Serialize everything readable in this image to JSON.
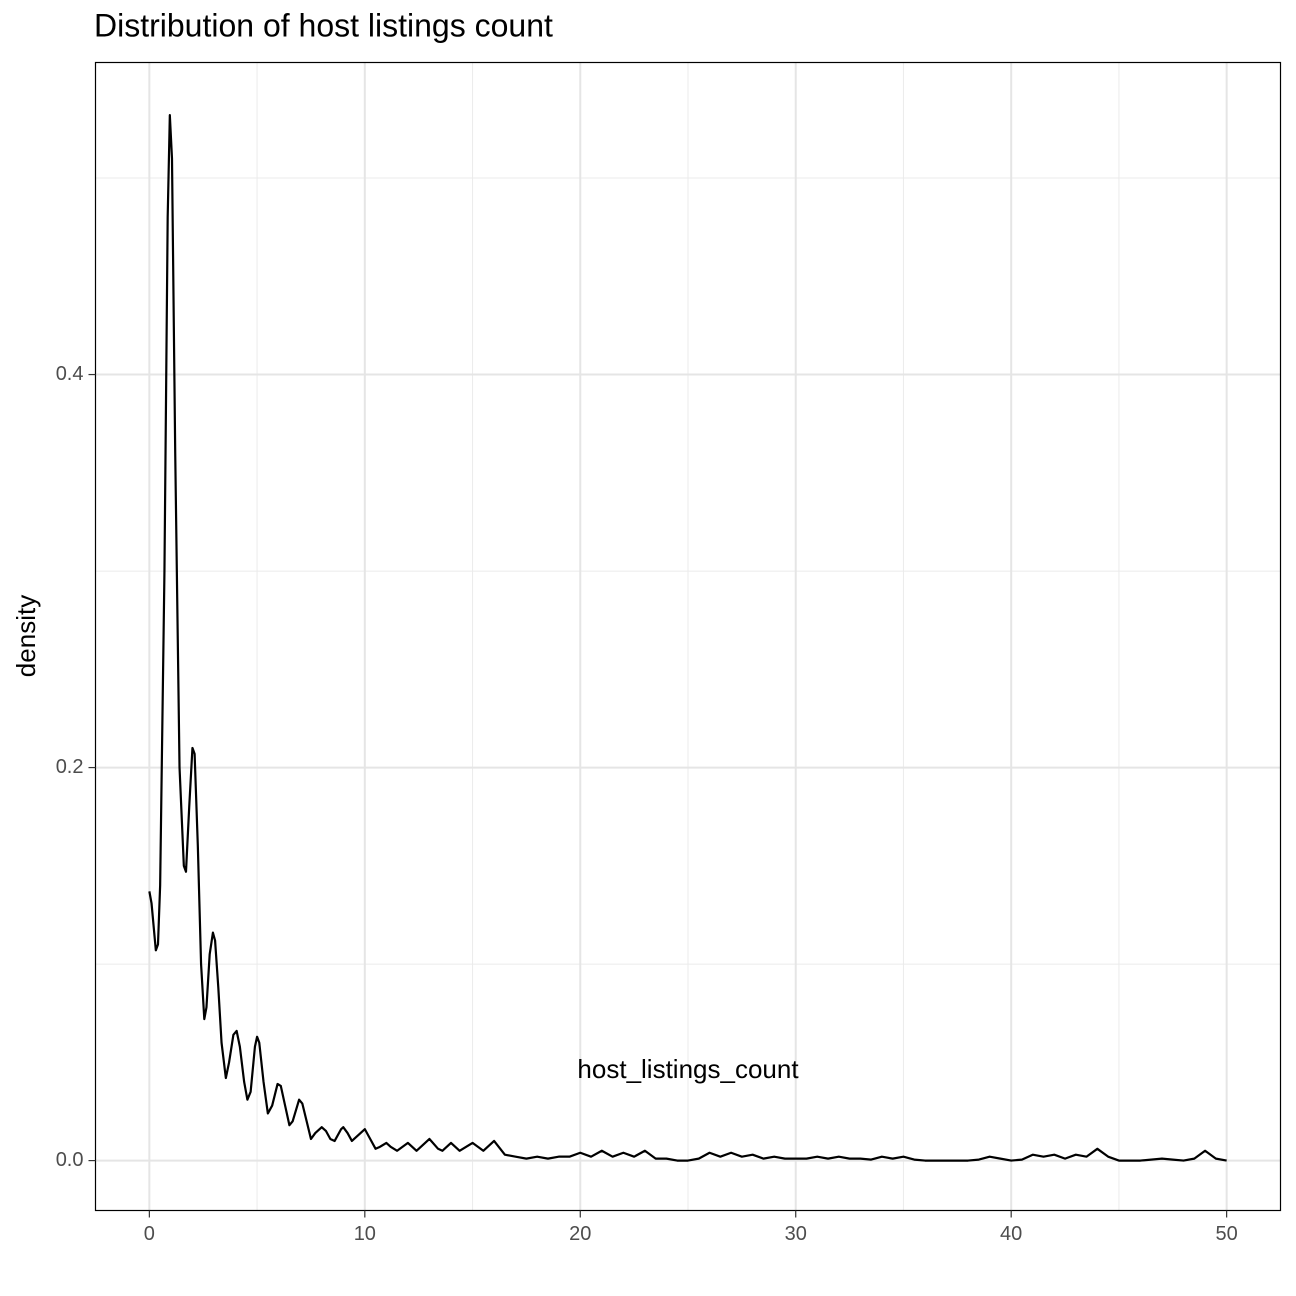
{
  "chart_data": {
    "type": "line",
    "title": "Distribution of host listings count",
    "x_label": "host_listings_count",
    "y_label": "density",
    "xlim": [
      -2.5,
      52.5
    ],
    "ylim": [
      -0.0254,
      0.5588
    ],
    "xticks": [
      0,
      10,
      20,
      30,
      40,
      50
    ],
    "yticks": [
      {
        "value": 0,
        "label": "0.0"
      },
      0.2,
      0.4
    ],
    "x_minor_grid": [
      5,
      15,
      25,
      35,
      45
    ],
    "y_minor_grid": [
      0.1,
      0.3,
      0.5
    ],
    "grid": true,
    "color": "#000000",
    "x": [
      0,
      0.1,
      0.3,
      0.4,
      0.5,
      0.7,
      0.85,
      0.95,
      1.05,
      1.2,
      1.4,
      1.6,
      1.7,
      1.85,
      2.0,
      2.1,
      2.25,
      2.4,
      2.55,
      2.65,
      2.8,
      2.95,
      3.05,
      3.2,
      3.35,
      3.55,
      3.7,
      3.9,
      4.05,
      4.2,
      4.4,
      4.55,
      4.7,
      4.9,
      5.0,
      5.1,
      5.3,
      5.5,
      5.7,
      5.95,
      6.1,
      6.3,
      6.5,
      6.65,
      6.95,
      7.1,
      7.3,
      7.5,
      7.7,
      8.0,
      8.2,
      8.4,
      8.6,
      8.9,
      9.0,
      9.2,
      9.4,
      9.7,
      10.0,
      10.2,
      10.5,
      10.7,
      11.0,
      11.2,
      11.5,
      12,
      12.4,
      13,
      13.4,
      13.6,
      14,
      14.4,
      15,
      15.5,
      16,
      16.5,
      17,
      17.5,
      18,
      18.5,
      19,
      19.5,
      20,
      20.5,
      21,
      21.5,
      22,
      22.5,
      23,
      23.5,
      24,
      24.5,
      25,
      25.5,
      26,
      26.5,
      27,
      27.5,
      28,
      28.5,
      29,
      29.5,
      30,
      30.5,
      31,
      31.5,
      32,
      32.5,
      33,
      33.5,
      34,
      34.5,
      35,
      35.5,
      36,
      37,
      38,
      38.5,
      39,
      39.5,
      40,
      40.5,
      41,
      41.5,
      42,
      42.5,
      43,
      43.5,
      44,
      44.5,
      45,
      46,
      47,
      47.5,
      48,
      48.5,
      49,
      49.5,
      50
    ],
    "values": [
      0.137,
      0.131,
      0.107,
      0.11,
      0.14,
      0.3,
      0.48,
      0.532,
      0.51,
      0.36,
      0.2,
      0.15,
      0.147,
      0.18,
      0.21,
      0.207,
      0.16,
      0.1,
      0.072,
      0.078,
      0.105,
      0.116,
      0.112,
      0.088,
      0.06,
      0.042,
      0.05,
      0.064,
      0.066,
      0.058,
      0.04,
      0.031,
      0.035,
      0.058,
      0.063,
      0.06,
      0.04,
      0.024,
      0.028,
      0.039,
      0.038,
      0.028,
      0.018,
      0.02,
      0.031,
      0.029,
      0.02,
      0.011,
      0.014,
      0.017,
      0.015,
      0.011,
      0.01,
      0.016,
      0.017,
      0.014,
      0.01,
      0.013,
      0.016,
      0.012,
      0.006,
      0.007,
      0.009,
      0.007,
      0.005,
      0.009,
      0.005,
      0.011,
      0.006,
      0.005,
      0.009,
      0.005,
      0.009,
      0.005,
      0.01,
      0.003,
      0.002,
      0.001,
      0.002,
      0.001,
      0.002,
      0.002,
      0.004,
      0.002,
      0.005,
      0.002,
      0.004,
      0.002,
      0.005,
      0.001,
      0.001,
      0,
      0,
      0.001,
      0.004,
      0.002,
      0.004,
      0.002,
      0.003,
      0.001,
      0.002,
      0.001,
      0.001,
      0.001,
      0.002,
      0.001,
      0.002,
      0.001,
      0.001,
      0.0005,
      0.002,
      0.001,
      0.002,
      0.0005,
      0,
      0,
      0,
      0.0005,
      0.002,
      0.001,
      0,
      0.0005,
      0.003,
      0.002,
      0.003,
      0.001,
      0.003,
      0.002,
      0.006,
      0.002,
      0,
      0,
      0.001,
      0.0005,
      0,
      0.001,
      0.005,
      0.001,
      0
    ]
  }
}
